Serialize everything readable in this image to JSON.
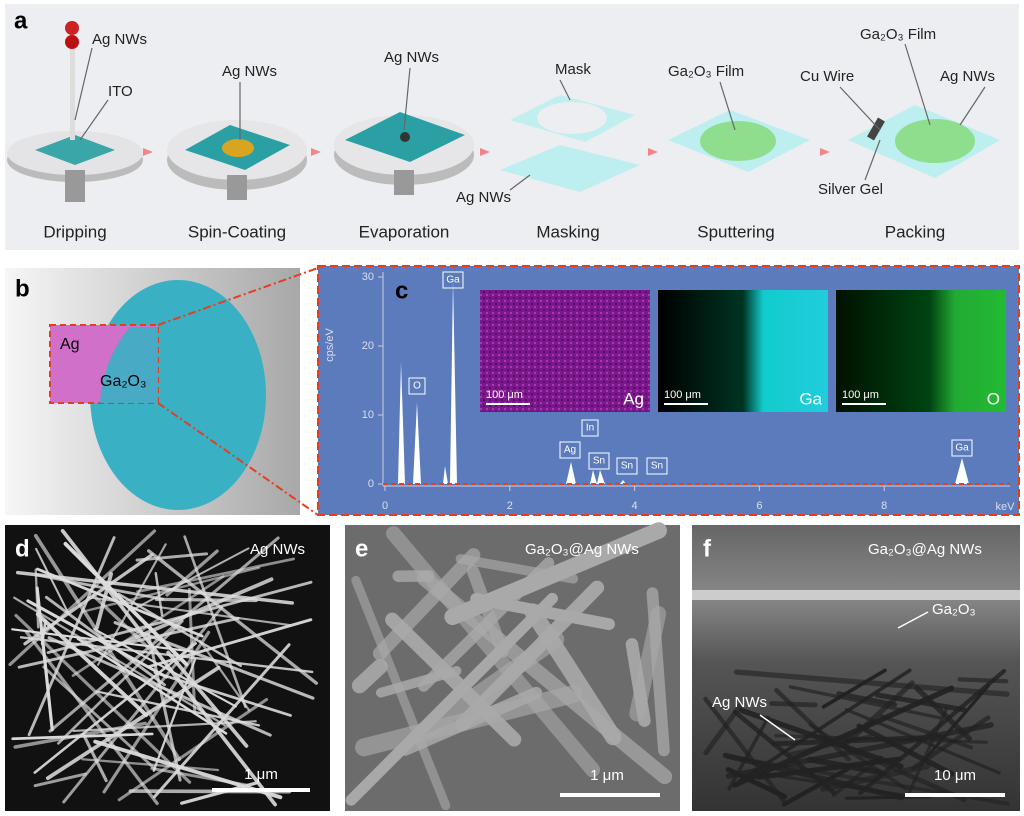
{
  "panel_a": {
    "label": "a",
    "steps": [
      "Dripping",
      "Spin-Coating",
      "Evaporation",
      "Masking",
      "Sputtering",
      "Packing"
    ],
    "annotations": [
      "Ag NWs",
      "ITO",
      "Ag NWs",
      "Ag NWs",
      "Mask",
      "Ag NWs",
      "Ga₂O₃ Film",
      "Cu Wire",
      "Ga₂O₃ Film",
      "Ag NWs",
      "Silver Gel"
    ]
  },
  "panel_b": {
    "label": "b",
    "regions": [
      "Ag",
      "Ga₂O₃"
    ]
  },
  "panel_c": {
    "label": "c",
    "y_axis_label": "cps/eV",
    "x_unit": "keV",
    "yticks": [
      0,
      10,
      20,
      30
    ],
    "xticks": [
      0,
      2,
      4,
      6,
      8
    ],
    "peaks": [
      "O",
      "Ga",
      "Ag",
      "In",
      "Sn",
      "Sn",
      "Sn",
      "Ga"
    ],
    "maps": [
      {
        "element": "Ag",
        "scale": "100 μm"
      },
      {
        "element": "Ga",
        "scale": "100 μm"
      },
      {
        "element": "O",
        "scale": "100 μm"
      }
    ]
  },
  "panel_d": {
    "label": "d",
    "title": "Ag NWs",
    "scale": "1 μm"
  },
  "panel_e": {
    "label": "e",
    "title": "Ga₂O₃@Ag NWs",
    "scale": "1 μm"
  },
  "panel_f": {
    "label": "f",
    "title": "Ga₂O₃@Ag NWs",
    "layers": [
      "Ga₂O₃",
      "Ag NWs"
    ],
    "scale": "10 μm"
  }
}
